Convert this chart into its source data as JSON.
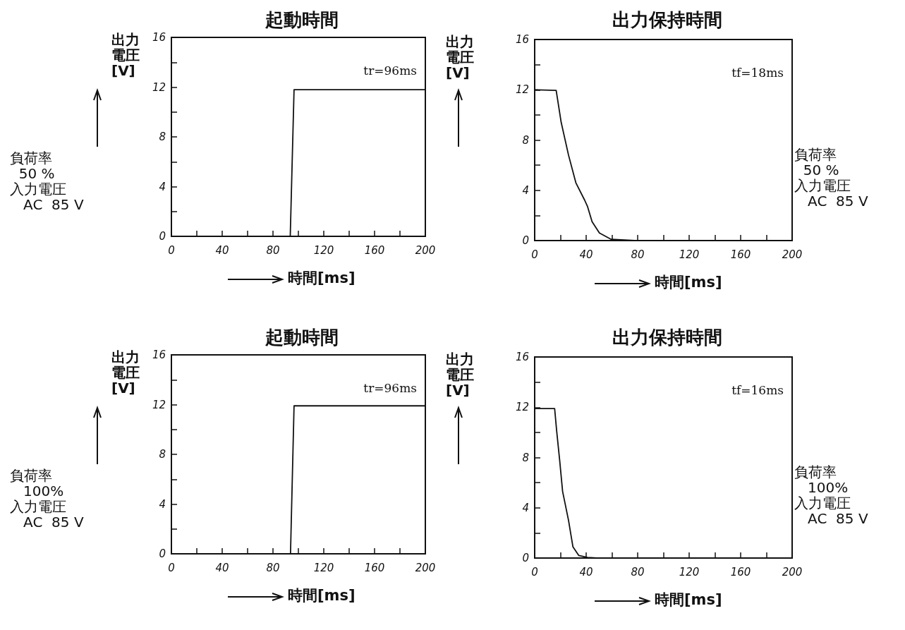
{
  "chart_data": [
    {
      "type": "line",
      "title": "起動時間",
      "ylabel": "出力電圧[V]",
      "xlabel": "時間[ms]",
      "annotations": [
        "tr=96ms",
        "負荷率\n  50 %\n入力電圧\n   AC  85 V"
      ],
      "xlim": [
        0,
        200
      ],
      "ylim": [
        0,
        16
      ],
      "xticks": [
        0,
        {
          "value": 20,
          "label": null
        },
        40,
        {
          "value": 60,
          "label": null
        },
        80,
        {
          "value": 100,
          "label": null
        },
        120,
        {
          "value": 140,
          "label": null
        },
        160,
        {
          "value": 180,
          "label": null
        },
        200
      ],
      "yticks": [
        0,
        {
          "value": 2,
          "label": null
        },
        4,
        {
          "value": 6,
          "label": null
        },
        8,
        {
          "value": 10,
          "label": null
        },
        12,
        {
          "value": 14,
          "label": null
        },
        16
      ],
      "grid": false,
      "marker": "none",
      "line_style": "solid",
      "series": [
        {
          "color": "#111111",
          "x": [
            0,
            93.6,
            96.6,
            120,
            160,
            200
          ],
          "values": [
            0,
            0,
            11.8,
            11.8,
            11.8,
            11.8
          ]
        }
      ]
    },
    {
      "type": "line",
      "title": "出力保持時間",
      "ylabel": "出力電圧[V]",
      "xlabel": "時間[ms]",
      "annotations": [
        "tf=18ms",
        "負荷率\n  50 %\n入力電圧\n   AC  85 V"
      ],
      "xlim": [
        0,
        200
      ],
      "ylim": [
        0,
        16
      ],
      "xticks": [
        0,
        {
          "value": 20,
          "label": null
        },
        40,
        {
          "value": 60,
          "label": null
        },
        80,
        {
          "value": 100,
          "label": null
        },
        120,
        {
          "value": 140,
          "label": null
        },
        160,
        {
          "value": 180,
          "label": null
        },
        200
      ],
      "yticks": [
        0,
        {
          "value": 2,
          "label": null
        },
        4,
        {
          "value": 6,
          "label": null
        },
        8,
        {
          "value": 10,
          "label": null
        },
        12,
        {
          "value": 14,
          "label": null
        },
        16
      ],
      "grid": false,
      "marker": "none",
      "line_style": "solid",
      "series": [
        {
          "color": "#111111",
          "x": [
            0,
            16.7,
            20.6,
            26.3,
            32,
            38.9,
            41.1,
            44.6,
            50.3,
            59.4,
            77.7,
            200
          ],
          "values": [
            12,
            11.95,
            9.4,
            6.8,
            4.6,
            3.2,
            2.7,
            1.5,
            0.6,
            0.1,
            0,
            0
          ]
        }
      ]
    },
    {
      "type": "line",
      "title": "起動時間",
      "ylabel": "出力電圧[V]",
      "xlabel": "時間[ms]",
      "annotations": [
        "tr=96ms",
        "負荷率\n   100%\n入力電圧\n   AC  85 V"
      ],
      "xlim": [
        0,
        200
      ],
      "ylim": [
        0,
        16
      ],
      "xticks": [
        0,
        {
          "value": 20,
          "label": null
        },
        40,
        {
          "value": 60,
          "label": null
        },
        80,
        {
          "value": 100,
          "label": null
        },
        120,
        {
          "value": 140,
          "label": null
        },
        160,
        {
          "value": 180,
          "label": null
        },
        200
      ],
      "yticks": [
        0,
        {
          "value": 2,
          "label": null
        },
        4,
        {
          "value": 6,
          "label": null
        },
        8,
        {
          "value": 10,
          "label": null
        },
        12,
        {
          "value": 14,
          "label": null
        },
        16
      ],
      "grid": false,
      "marker": "none",
      "line_style": "solid",
      "series": [
        {
          "color": "#111111",
          "x": [
            0,
            93.8,
            96.6,
            120,
            160,
            200
          ],
          "values": [
            0,
            0,
            11.9,
            11.9,
            11.9,
            11.9
          ]
        }
      ]
    },
    {
      "type": "line",
      "title": "出力保持時間",
      "ylabel": "出力電圧[V]",
      "xlabel": "時間[ms]",
      "annotations": [
        "tf=16ms",
        "負荷率\n   100%\n入力電圧\n   AC  85 V"
      ],
      "xlim": [
        0,
        200
      ],
      "ylim": [
        0,
        16
      ],
      "xticks": [
        0,
        {
          "value": 20,
          "label": null
        },
        40,
        {
          "value": 60,
          "label": null
        },
        80,
        {
          "value": 100,
          "label": null
        },
        120,
        {
          "value": 140,
          "label": null
        },
        160,
        {
          "value": 180,
          "label": null
        },
        200
      ],
      "yticks": [
        0,
        {
          "value": 2,
          "label": null
        },
        4,
        {
          "value": 6,
          "label": null
        },
        8,
        {
          "value": 10,
          "label": null
        },
        12,
        {
          "value": 14,
          "label": null
        },
        16
      ],
      "grid": false,
      "marker": "none",
      "line_style": "solid",
      "series": [
        {
          "color": "#111111",
          "x": [
            0,
            15.5,
            17.1,
            19.4,
            21.7,
            26.3,
            29.7,
            34.3,
            41,
            48,
            200
          ],
          "values": [
            11.9,
            11.9,
            10.1,
            7.8,
            5.3,
            3,
            0.9,
            0.2,
            0.05,
            0,
            0
          ]
        }
      ]
    }
  ]
}
